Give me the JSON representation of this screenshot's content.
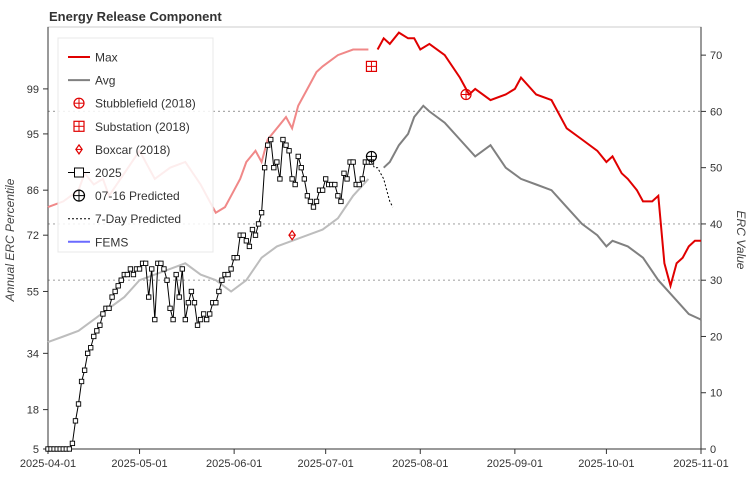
{
  "chart_data": {
    "type": "line",
    "title": "Energy Release Component",
    "ylabel_left": "Annual ERC Percentile",
    "ylabel_right": "ERC Value",
    "left_tick_labels": [
      "5",
      "18",
      "34",
      "55",
      "72",
      "86",
      "95",
      "99"
    ],
    "right_ticks": [
      0,
      10,
      20,
      30,
      40,
      50,
      60,
      70
    ],
    "ylim_right": [
      0,
      75
    ],
    "x_tick_labels": [
      "2025-04-01",
      "2025-05-01",
      "2025-06-01",
      "2025-07-01",
      "2025-08-01",
      "2025-09-01",
      "2025-10-01",
      "2025-11-01"
    ],
    "x_range_days": [
      0,
      214
    ],
    "reference_lines": [
      30,
      40,
      60
    ],
    "legend": {
      "position": "top-left",
      "entries": [
        "Max",
        "Avg",
        "Stubblefield (2018)",
        "Substation (2018)",
        "Boxcar (2018)",
        "2025",
        "07-16 Predicted",
        "7-Day Predicted",
        "FEMS"
      ]
    },
    "colors": {
      "max": "#e00000",
      "max_faded": "#f08888",
      "avg": "#808080",
      "avg_faded": "#bdbdbd",
      "current": "#000000",
      "current_faded": "#9a9a9a",
      "fems": "#6a6aff",
      "reference": "#aaaaaa"
    },
    "series": [
      {
        "name": "Max",
        "x": [
          0,
          5,
          10,
          12,
          15,
          18,
          20,
          25,
          30,
          35,
          40,
          45,
          50,
          55,
          58,
          60,
          63,
          65,
          68,
          70,
          72,
          75,
          78,
          80,
          82,
          85,
          88,
          90,
          95,
          100,
          105,
          108,
          110,
          112,
          115,
          118,
          120,
          122,
          125,
          130,
          135,
          138,
          140,
          145,
          150,
          153,
          155,
          160,
          165,
          170,
          175,
          180,
          183,
          185,
          188,
          190,
          193,
          195,
          198,
          200,
          202,
          204,
          206,
          208,
          210,
          212,
          214
        ],
        "values": [
          43,
          44,
          46,
          49,
          47,
          48,
          45,
          49,
          53,
          48,
          50,
          51,
          47,
          42,
          43,
          45,
          48,
          51,
          53,
          51,
          55,
          57,
          59,
          57,
          61,
          64,
          67,
          68,
          70,
          71,
          71,
          71,
          73,
          72,
          74,
          73,
          73,
          71,
          72,
          70,
          66,
          63,
          64,
          62,
          63,
          64,
          66,
          63,
          62,
          57,
          55,
          53,
          51,
          52,
          49,
          48,
          46,
          44,
          44,
          45,
          33,
          29,
          33,
          34,
          36,
          37,
          37
        ]
      },
      {
        "name": "Avg",
        "x": [
          0,
          5,
          10,
          15,
          20,
          25,
          30,
          35,
          40,
          45,
          50,
          55,
          60,
          65,
          70,
          75,
          80,
          85,
          90,
          95,
          100,
          105,
          110,
          112,
          115,
          118,
          120,
          123,
          125,
          130,
          135,
          140,
          145,
          150,
          155,
          160,
          165,
          170,
          175,
          180,
          183,
          185,
          190,
          195,
          200,
          205,
          210,
          214
        ],
        "values": [
          19,
          20,
          21,
          23,
          25,
          27,
          30,
          31,
          32,
          33,
          31,
          30,
          28,
          30,
          34,
          36,
          37,
          38,
          39,
          41,
          45,
          48,
          50,
          51,
          54,
          56,
          59,
          61,
          60,
          58,
          55,
          52,
          54,
          50,
          48,
          47,
          46,
          43,
          40,
          38,
          36,
          37,
          36,
          34,
          30,
          27,
          24,
          23
        ]
      },
      {
        "name": "2025",
        "x": [
          0,
          1,
          2,
          3,
          4,
          5,
          6,
          7,
          8,
          9,
          10,
          11,
          12,
          13,
          14,
          15,
          16,
          17,
          18,
          19,
          20,
          21,
          22,
          23,
          24,
          25,
          26,
          27,
          28,
          29,
          30,
          31,
          32,
          33,
          34,
          35,
          36,
          37,
          38,
          39,
          40,
          41,
          42,
          43,
          44,
          45,
          46,
          47,
          48,
          49,
          50,
          51,
          52,
          53,
          54,
          55,
          56,
          57,
          58,
          59,
          60,
          61,
          62,
          63,
          64,
          65,
          66,
          67,
          68,
          69,
          70,
          71,
          72,
          73,
          74,
          75,
          76,
          77,
          78,
          79,
          80,
          81,
          82,
          83,
          84,
          85,
          86,
          87,
          88,
          89,
          90,
          91,
          92,
          93,
          94,
          95,
          96,
          97,
          98,
          99,
          100,
          101,
          102,
          103,
          104,
          105,
          106
        ],
        "values": [
          0,
          0,
          0,
          0,
          0,
          0,
          0,
          0,
          1,
          5,
          8,
          12,
          14,
          17,
          18,
          20,
          21,
          22,
          24,
          25,
          25,
          27,
          28,
          29,
          30,
          31,
          31,
          32,
          31,
          32,
          32,
          33,
          33,
          27,
          32,
          23,
          33,
          33,
          32,
          30,
          25,
          23,
          31,
          27,
          32,
          23,
          26,
          28,
          26,
          22,
          23,
          24,
          23,
          24,
          26,
          26,
          28,
          30,
          31,
          31,
          32,
          34,
          34,
          38,
          38,
          37,
          36,
          39,
          38,
          40,
          42,
          50,
          54,
          55,
          50,
          51,
          48,
          55,
          54,
          53,
          48,
          47,
          52,
          50,
          48,
          45,
          44,
          43,
          44,
          46,
          46,
          48,
          47,
          47,
          47,
          45,
          44,
          49,
          48,
          51,
          51,
          47,
          47,
          48,
          51,
          51,
          51
        ]
      },
      {
        "name": "7-Day Predicted",
        "x": [
          106,
          107,
          108,
          109,
          110,
          111,
          112,
          113
        ],
        "values": [
          51,
          50,
          50,
          49,
          48,
          46,
          44,
          43
        ]
      }
    ],
    "markers": [
      {
        "name": "Stubblefield (2018)",
        "x": 137,
        "value": 63
      },
      {
        "name": "Substation (2018)",
        "x": 106,
        "value": 68
      },
      {
        "name": "Boxcar (2018)",
        "x": 80,
        "value": 38
      },
      {
        "name": "07-16 Predicted",
        "x": 106,
        "value": 52
      }
    ]
  }
}
